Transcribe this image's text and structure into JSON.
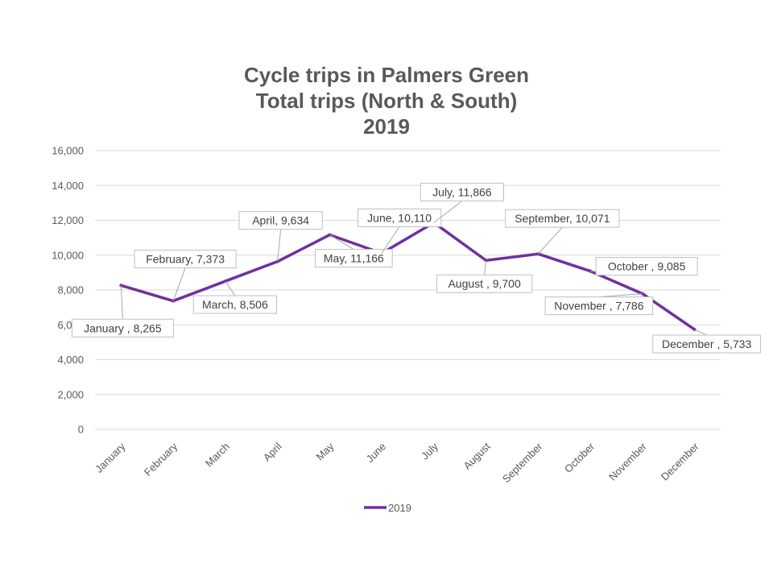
{
  "chart_data": {
    "type": "line",
    "title_lines": [
      "Cycle trips in Palmers Green",
      "Total trips (North & South)",
      "2019"
    ],
    "xlabel": "",
    "ylabel": "",
    "categories": [
      "January",
      "February",
      "March",
      "April",
      "May",
      "June",
      "July",
      "August",
      "September",
      "October",
      "November",
      "December"
    ],
    "series": [
      {
        "name": "2019",
        "color": "#7030A0",
        "values": [
          8265,
          7373,
          8506,
          9634,
          11166,
          10110,
          11866,
          9700,
          10071,
          9085,
          7786,
          5733
        ]
      }
    ],
    "data_labels": [
      "January , 8,265",
      "February, 7,373",
      "March, 8,506",
      "April, 9,634",
      "May, 11,166",
      "June, 10,110",
      "July, 11,866",
      "August , 9,700",
      "September, 10,071",
      "October , 9,085",
      "November , 7,786",
      "December , 5,733"
    ],
    "ylim": [
      0,
      16000
    ],
    "yticks": [
      0,
      2000,
      4000,
      6000,
      8000,
      10000,
      12000,
      14000,
      16000
    ],
    "ytick_labels": [
      "0",
      "2,000",
      "4,000",
      "6,000",
      "8,000",
      "10,000",
      "12,000",
      "14,000",
      "16,000"
    ],
    "grid": true,
    "legend_position": "bottom"
  }
}
